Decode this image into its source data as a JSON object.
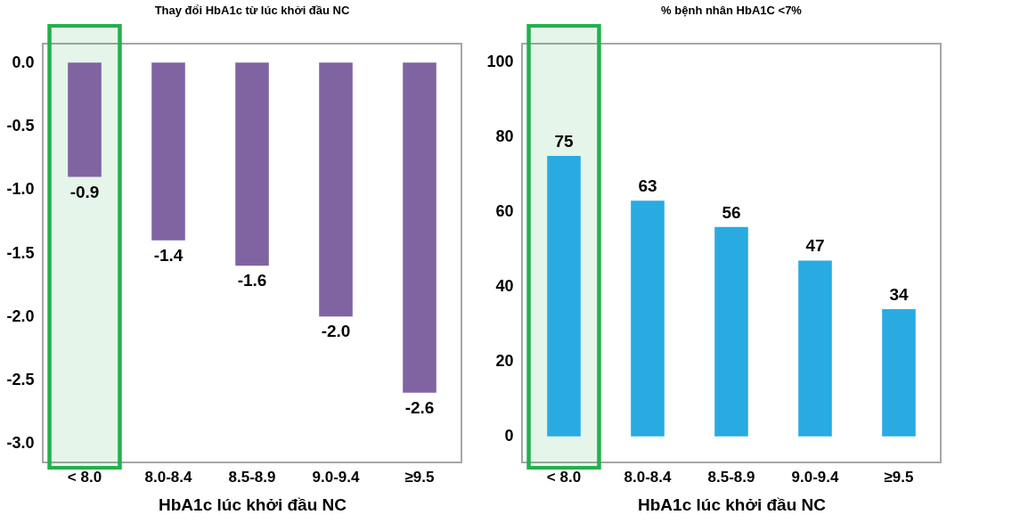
{
  "chart_data": [
    {
      "type": "bar",
      "title": "Thay đổi HbA1c từ lúc khởi đầu  NC",
      "xlabel": "HbA1c lúc khởi đầu NC",
      "categories": [
        "< 8.0",
        "8.0-8.4",
        "8.5-8.9",
        "9.0-9.4",
        "≥9.5"
      ],
      "series": [
        {
          "color": "#8064a2",
          "values": [
            -0.9,
            -1.4,
            -1.6,
            -2.0,
            -2.6
          ]
        }
      ],
      "value_labels": [
        "-0.9",
        "-1.4",
        "-1.6",
        "-2.0",
        "-2.6"
      ],
      "ylim": [
        -3.15,
        0.15
      ],
      "yticks": [
        {
          "value": 0,
          "label": "0.0"
        },
        {
          "value": -0.5,
          "label": "-0.5"
        },
        {
          "value": -1,
          "label": "-1.0"
        },
        {
          "value": -1.5,
          "label": "-1.5"
        },
        {
          "value": -2,
          "label": "-2.0"
        },
        {
          "value": -2.5,
          "label": "-2.5"
        },
        {
          "value": -3,
          "label": "-3.0"
        }
      ],
      "bands": [
        {
          "axis": "x",
          "from": "< 8.0",
          "to": "< 8.0",
          "color": "#22b14c"
        }
      ],
      "grid": false,
      "legend": false
    },
    {
      "type": "bar",
      "title": "% bệnh nhân HbA1C <7%",
      "xlabel": "HbA1c lúc khởi đầu NC",
      "categories": [
        "< 8.0",
        "8.0-8.4",
        "8.5-8.9",
        "9.0-9.4",
        "≥9.5"
      ],
      "series": [
        {
          "color": "#29abe2",
          "values": [
            75,
            63,
            56,
            47,
            34
          ]
        }
      ],
      "data_labels": true,
      "ylim": [
        -7,
        105
      ],
      "yticks": [
        0,
        20,
        40,
        60,
        80,
        100
      ],
      "bands": [
        {
          "axis": "x",
          "from": "< 8.0",
          "to": "< 8.0",
          "color": "#22b14c"
        }
      ],
      "grid": false,
      "legend": false
    }
  ]
}
